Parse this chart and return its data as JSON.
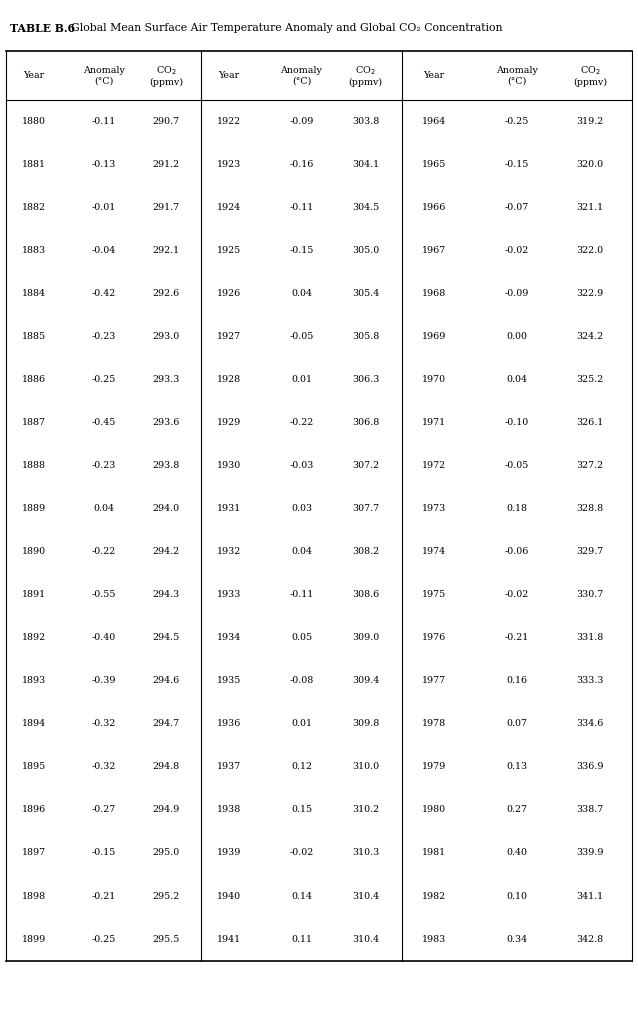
{
  "title_bold": "TABLE B.6",
  "title_normal": "  Global Mean Surface Air Temperature Anomaly and Global CO₂ Concentration",
  "col1_year": [
    1880,
    1881,
    1882,
    1883,
    1884,
    1885,
    1886,
    1887,
    1888,
    1889,
    1890,
    1891,
    1892,
    1893,
    1894,
    1895,
    1896,
    1897,
    1898,
    1899
  ],
  "col1_anomaly": [
    "-0.11",
    "-0.13",
    "-0.01",
    "-0.04",
    "-0.42",
    "-0.23",
    "-0.25",
    "-0.45",
    "-0.23",
    "0.04",
    "-0.22",
    "-0.55",
    "-0.40",
    "-0.39",
    "-0.32",
    "-0.32",
    "-0.27",
    "-0.15",
    "-0.21",
    "-0.25"
  ],
  "col1_co2": [
    "290.7",
    "291.2",
    "291.7",
    "292.1",
    "292.6",
    "293.0",
    "293.3",
    "293.6",
    "293.8",
    "294.0",
    "294.2",
    "294.3",
    "294.5",
    "294.6",
    "294.7",
    "294.8",
    "294.9",
    "295.0",
    "295.2",
    "295.5"
  ],
  "col2_year": [
    1922,
    1923,
    1924,
    1925,
    1926,
    1927,
    1928,
    1929,
    1930,
    1931,
    1932,
    1933,
    1934,
    1935,
    1936,
    1937,
    1938,
    1939,
    1940,
    1941
  ],
  "col2_anomaly": [
    "-0.09",
    "-0.16",
    "-0.11",
    "-0.15",
    "0.04",
    "-0.05",
    "0.01",
    "-0.22",
    "-0.03",
    "0.03",
    "0.04",
    "-0.11",
    "0.05",
    "-0.08",
    "0.01",
    "0.12",
    "0.15",
    "-0.02",
    "0.14",
    "0.11"
  ],
  "col2_co2": [
    "303.8",
    "304.1",
    "304.5",
    "305.0",
    "305.4",
    "305.8",
    "306.3",
    "306.8",
    "307.2",
    "307.7",
    "308.2",
    "308.6",
    "309.0",
    "309.4",
    "309.8",
    "310.0",
    "310.2",
    "310.3",
    "310.4",
    "310.4"
  ],
  "col3_year": [
    1964,
    1965,
    1966,
    1967,
    1968,
    1969,
    1970,
    1971,
    1972,
    1973,
    1974,
    1975,
    1976,
    1977,
    1978,
    1979,
    1980,
    1981,
    1982,
    1983
  ],
  "col3_anomaly": [
    "-0.25",
    "-0.15",
    "-0.07",
    "-0.02",
    "-0.09",
    "0.00",
    "0.04",
    "-0.10",
    "-0.05",
    "0.18",
    "-0.06",
    "-0.02",
    "-0.21",
    "0.16",
    "0.07",
    "0.13",
    "0.27",
    "0.40",
    "0.10",
    "0.34"
  ],
  "col3_co2": [
    "319.2",
    "320.0",
    "321.1",
    "322.0",
    "322.9",
    "324.2",
    "325.2",
    "326.1",
    "327.2",
    "328.8",
    "329.7",
    "330.7",
    "331.8",
    "333.3",
    "334.6",
    "336.9",
    "338.7",
    "339.9",
    "341.1",
    "342.8"
  ]
}
